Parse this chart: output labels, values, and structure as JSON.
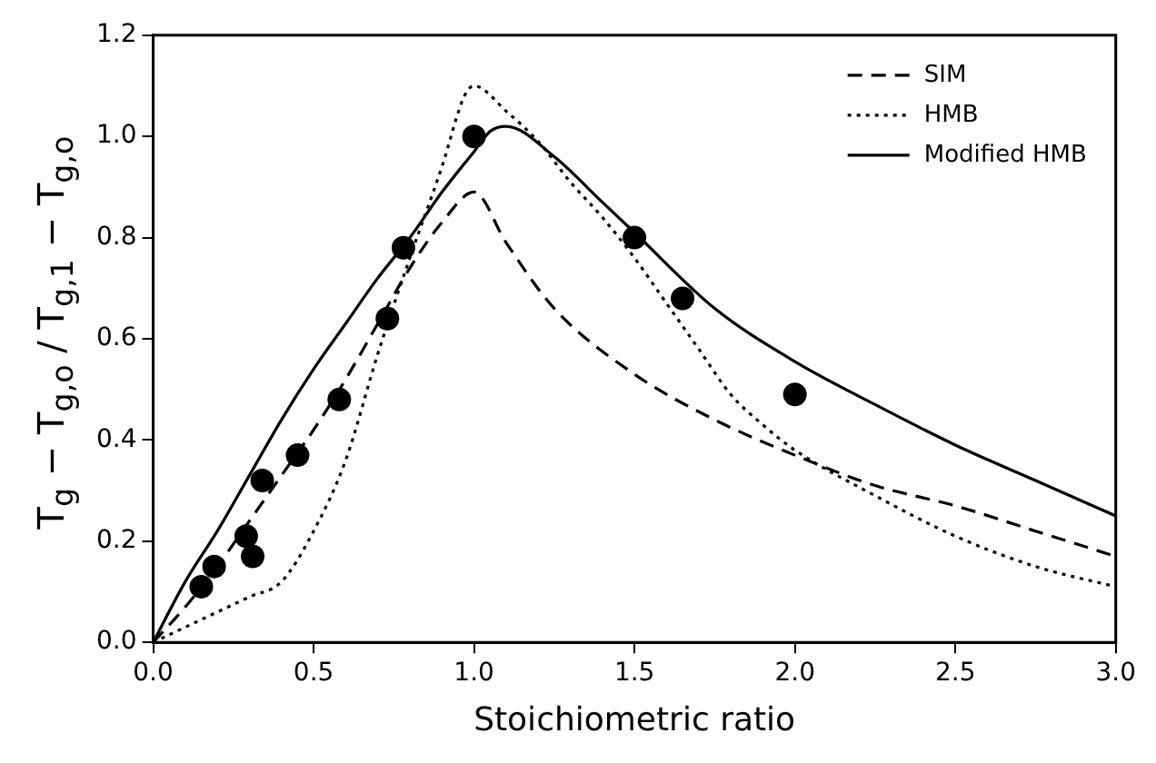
{
  "chart_data": {
    "type": "line",
    "xlabel": "Stoichiometric ratio",
    "ylabel": "T$_{g}$ − T$_{g,o}$ / T$_{g,1}$ − T$_{g,o}$",
    "xlim": [
      0,
      3
    ],
    "xticks": [
      {
        "value": 0,
        "label": "0.0"
      },
      0.5,
      {
        "value": 1,
        "label": "1.0"
      },
      1.5,
      {
        "value": 2,
        "label": "2.0"
      },
      2.5,
      {
        "value": 3,
        "label": "3.0"
      }
    ],
    "ylim": [
      0,
      1.2
    ],
    "yticks": [
      {
        "value": 0,
        "label": "0.0"
      },
      0.2,
      0.4,
      0.6,
      0.8,
      {
        "value": 1,
        "label": "1.0"
      },
      1.2
    ],
    "grid": false,
    "legend": "top right",
    "series": [
      {
        "name": "SIM",
        "line_style": "dashed",
        "color": "#000000",
        "x": [
          0,
          0.1,
          0.2,
          0.3,
          0.4,
          0.5,
          0.6,
          0.7,
          0.8,
          0.9,
          1.0,
          1.1,
          1.25,
          1.5,
          1.75,
          2.0,
          2.25,
          2.5,
          2.75,
          3.0
        ],
        "values": [
          0,
          0.07,
          0.15,
          0.24,
          0.33,
          0.42,
          0.52,
          0.63,
          0.74,
          0.83,
          0.89,
          0.79,
          0.66,
          0.53,
          0.44,
          0.37,
          0.31,
          0.27,
          0.22,
          0.17
        ]
      },
      {
        "name": "HMB",
        "line_style": "dotted",
        "color": "#000000",
        "x": [
          0,
          0.1,
          0.2,
          0.3,
          0.4,
          0.5,
          0.6,
          0.7,
          0.8,
          0.9,
          0.97,
          1.0,
          1.1,
          1.2,
          1.3,
          1.4,
          1.5,
          1.6,
          1.7,
          1.8,
          1.9,
          2.0,
          2.25,
          2.5,
          2.75,
          3.0
        ],
        "values": [
          0,
          0.03,
          0.06,
          0.09,
          0.12,
          0.22,
          0.36,
          0.57,
          0.76,
          0.94,
          1.08,
          1.1,
          1.05,
          0.99,
          0.91,
          0.84,
          0.76,
          0.67,
          0.58,
          0.49,
          0.43,
          0.38,
          0.29,
          0.21,
          0.15,
          0.11
        ]
      },
      {
        "name": "Modified HMB",
        "line_style": "solid",
        "color": "#000000",
        "x": [
          0,
          0.1,
          0.2,
          0.3,
          0.4,
          0.5,
          0.6,
          0.7,
          0.8,
          0.9,
          1.0,
          1.05,
          1.1,
          1.25,
          1.4,
          1.5,
          1.75,
          2.0,
          2.25,
          2.5,
          2.75,
          3.0
        ],
        "values": [
          0,
          0.12,
          0.22,
          0.33,
          0.44,
          0.54,
          0.63,
          0.72,
          0.8,
          0.89,
          0.97,
          1.01,
          1.02,
          0.96,
          0.87,
          0.81,
          0.66,
          0.555,
          0.47,
          0.39,
          0.32,
          0.25
        ]
      },
      {
        "type": "scatter",
        "marker": "circle",
        "color": "#000000",
        "x": [
          0.15,
          0.19,
          0.29,
          0.31,
          0.34,
          0.45,
          0.58,
          0.73,
          0.78,
          1.0,
          1.5,
          1.65,
          2.0
        ],
        "values": [
          0.11,
          0.15,
          0.21,
          0.17,
          0.32,
          0.37,
          0.48,
          0.64,
          0.78,
          1.0,
          0.8,
          0.68,
          0.49
        ]
      }
    ]
  }
}
